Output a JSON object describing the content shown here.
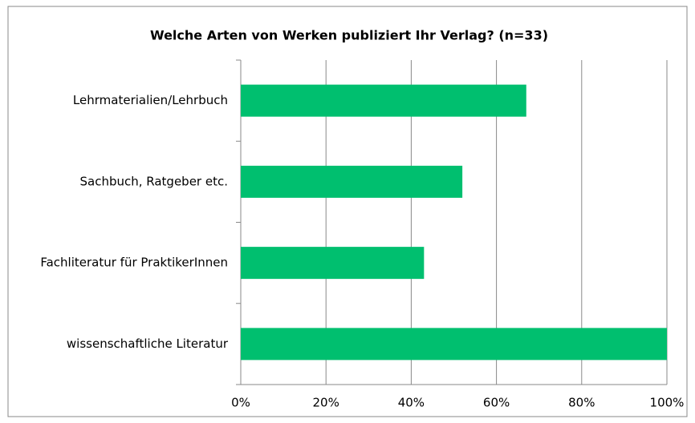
{
  "chart_data": {
    "type": "bar",
    "orientation": "horizontal",
    "title": "Welche Arten von Werken publiziert Ihr Verlag? (n=33)",
    "categories": [
      "Lehrmaterialien/Lehrbuch",
      "Sachbuch, Ratgeber etc.",
      "Fachliteratur für PraktikerInnen",
      "wissenschaftliche Literatur"
    ],
    "values": [
      67,
      52,
      43,
      100
    ],
    "color": "#00bf6f",
    "xlim": [
      0,
      100
    ],
    "xticks": [
      {
        "value": 0,
        "label": "0%"
      },
      {
        "value": 20,
        "label": "20%"
      },
      {
        "value": 40,
        "label": "40%"
      },
      {
        "value": 60,
        "label": "60%"
      },
      {
        "value": 80,
        "label": "80%"
      },
      {
        "value": 100,
        "label": "100%"
      }
    ],
    "grid": true
  }
}
